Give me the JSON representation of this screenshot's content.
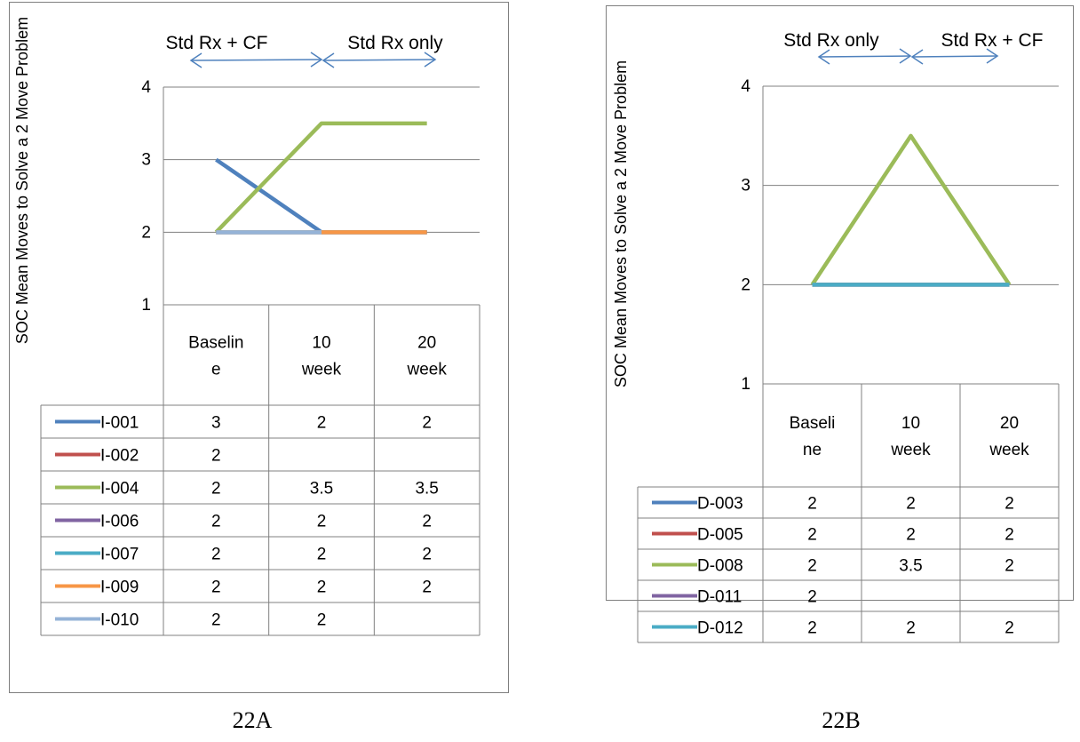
{
  "chart_data": [
    {
      "type": "line",
      "caption": "22A",
      "ylabel": "SOC Mean Moves to Solve a 2 Move Problem",
      "ylim": [
        1,
        4
      ],
      "yticks": [
        "1",
        "2",
        "3",
        "4"
      ],
      "categories": [
        "Baselin e",
        "10 week",
        "20 week"
      ],
      "category_lines": [
        [
          "Baselin",
          "e"
        ],
        [
          "10",
          "week"
        ],
        [
          "20",
          "week"
        ]
      ],
      "phase_labels": [
        "Std Rx + CF",
        "Std Rx only"
      ],
      "grid": true,
      "legend": "data-table",
      "series": [
        {
          "name": "I-001",
          "color": "#4f81bd",
          "values": [
            3,
            2,
            2
          ],
          "labels": [
            "3",
            "2",
            "2"
          ]
        },
        {
          "name": "I-002",
          "color": "#c0504d",
          "values": [
            2,
            null,
            null
          ],
          "labels": [
            "2",
            "",
            ""
          ]
        },
        {
          "name": "I-004",
          "color": "#9bbb59",
          "values": [
            2,
            3.5,
            3.5
          ],
          "labels": [
            "2",
            "3.5",
            "3.5"
          ]
        },
        {
          "name": "I-006",
          "color": "#8064a2",
          "values": [
            2,
            2,
            2
          ],
          "labels": [
            "2",
            "2",
            "2"
          ]
        },
        {
          "name": "I-007",
          "color": "#4bacc6",
          "values": [
            2,
            2,
            2
          ],
          "labels": [
            "2",
            "2",
            "2"
          ]
        },
        {
          "name": "I-009",
          "color": "#f79646",
          "values": [
            2,
            2,
            2
          ],
          "labels": [
            "2",
            "2",
            "2"
          ]
        },
        {
          "name": "I-010",
          "color": "#95b3d7",
          "values": [
            2,
            2,
            null
          ],
          "labels": [
            "2",
            "2",
            ""
          ]
        }
      ]
    },
    {
      "type": "line",
      "caption": "22B",
      "ylabel": "SOC Mean Moves to Solve a 2 Move Problem",
      "ylim": [
        1,
        4
      ],
      "yticks": [
        "1",
        "2",
        "3",
        "4"
      ],
      "categories": [
        "Baseli ne",
        "10 week",
        "20 week"
      ],
      "category_lines": [
        [
          "Baseli",
          "ne"
        ],
        [
          "10",
          "week"
        ],
        [
          "20",
          "week"
        ]
      ],
      "phase_labels": [
        "Std Rx only",
        "Std Rx + CF"
      ],
      "grid": true,
      "legend": "data-table",
      "series": [
        {
          "name": "D-003",
          "color": "#4f81bd",
          "values": [
            2,
            2,
            2
          ],
          "labels": [
            "2",
            "2",
            "2"
          ]
        },
        {
          "name": "D-005",
          "color": "#c0504d",
          "values": [
            2,
            2,
            2
          ],
          "labels": [
            "2",
            "2",
            "2"
          ]
        },
        {
          "name": "D-008",
          "color": "#9bbb59",
          "values": [
            2,
            3.5,
            2
          ],
          "labels": [
            "2",
            "3.5",
            "2"
          ]
        },
        {
          "name": "D-011",
          "color": "#8064a2",
          "values": [
            2,
            null,
            null
          ],
          "labels": [
            "2",
            "",
            ""
          ]
        },
        {
          "name": "D-012",
          "color": "#4bacc6",
          "values": [
            2,
            2,
            2
          ],
          "labels": [
            "2",
            "2",
            "2"
          ]
        }
      ]
    }
  ]
}
